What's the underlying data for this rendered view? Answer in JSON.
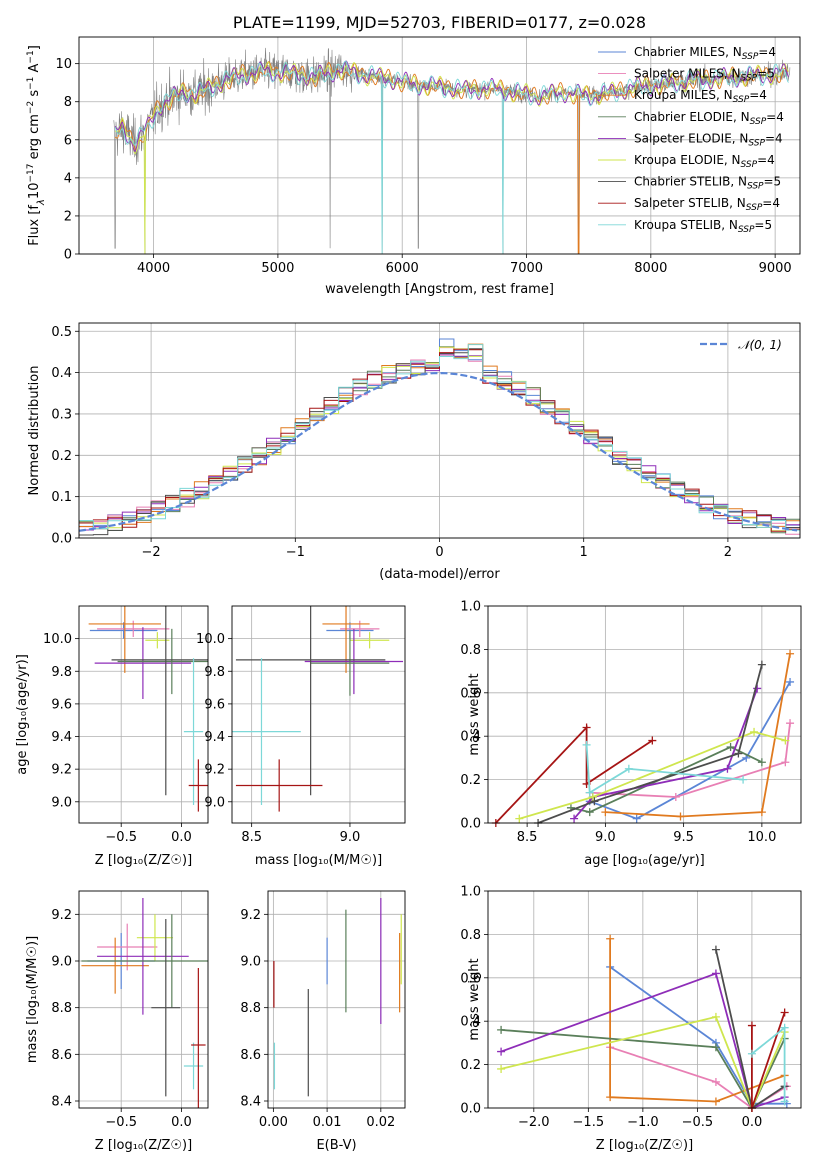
{
  "colors": {
    "chabrier_miles": "#5b86d6",
    "salpeter_miles": "#e87fb4",
    "kroupa_miles": "#e07a1f",
    "chabrier_elodie": "#5a7f5a",
    "salpeter_elodie": "#8e2db8",
    "kroupa_elodie": "#cfe64e",
    "chabrier_stelib": "#4d4d4d",
    "salpeter_stelib": "#a61515",
    "kroupa_stelib": "#7dd8d8",
    "data": "#808080",
    "grid": "#b0b0b0"
  },
  "chart_data": [
    {
      "id": "spectrum",
      "type": "line",
      "title": "PLATE=1199, MJD=52703, FIBERID=0177, z=0.028",
      "xlabel": "wavelength [Angstrom, rest frame]",
      "ylabel": "Flux [f",
      "ylabel_parts": [
        "Flux [f",
        "λ",
        "10",
        "−17",
        " erg cm",
        "−2",
        " s",
        "−1",
        " A",
        "−1",
        "]"
      ],
      "xlim": [
        3400,
        9200
      ],
      "ylim": [
        0,
        11.4
      ],
      "xticks": [
        "4000",
        "5000",
        "6000",
        "7000",
        "8000",
        "9000"
      ],
      "xtick_values": [
        4000,
        5000,
        6000,
        7000,
        8000,
        9000
      ],
      "yticks": [
        "0",
        "2",
        "4",
        "6",
        "8",
        "10"
      ],
      "ytick_values": [
        0,
        2,
        4,
        6,
        8,
        10
      ],
      "legend_position": "top-right",
      "legend": [
        {
          "label": "Chabrier MILES, N",
          "sub": "SSP",
          "val": "=4"
        },
        {
          "label": "Salpeter MILES, N",
          "sub": "SSP",
          "val": "=5"
        },
        {
          "label": "Kroupa MILES, N",
          "sub": "SSP",
          "val": "=4"
        },
        {
          "label": "Chabrier ELODIE, N",
          "sub": "SSP",
          "val": "=4"
        },
        {
          "label": "Salpeter ELODIE, N",
          "sub": "SSP",
          "val": "=4"
        },
        {
          "label": "Kroupa ELODIE, N",
          "sub": "SSP",
          "val": "=4"
        },
        {
          "label": "Chabrier STELIB, N",
          "sub": "SSP",
          "val": "=5"
        },
        {
          "label": "Salpeter STELIB, N",
          "sub": "SSP",
          "val": "=4"
        },
        {
          "label": "Kroupa STELIB, N",
          "sub": "SSP",
          "val": "=5"
        }
      ],
      "continuum": {
        "x": [
          3680,
          3750,
          3850,
          3950,
          4050,
          4150,
          4250,
          4350,
          4500,
          4700,
          4900,
          5100,
          5300,
          5500,
          5700,
          5900,
          6100,
          6300,
          6500,
          6700,
          6900,
          7100,
          7300,
          7500,
          7700,
          7900,
          8100,
          8300,
          8500,
          8700,
          8900,
          9100
        ],
        "y": [
          6.2,
          6.6,
          5.8,
          6.6,
          7.8,
          8.2,
          8.5,
          8.4,
          8.9,
          9.4,
          9.6,
          9.5,
          9.3,
          9.7,
          9.4,
          9.2,
          8.9,
          8.8,
          8.6,
          8.7,
          8.5,
          8.3,
          8.5,
          8.3,
          8.5,
          8.8,
          8.9,
          9.1,
          9.2,
          9.3,
          9.4,
          9.5
        ]
      },
      "dips": [
        {
          "x": 3690,
          "y": 0.3
        },
        {
          "x": 3930,
          "y": 0.0
        },
        {
          "x": 5420,
          "y": 0.3
        },
        {
          "x": 5840,
          "y": 0.0
        },
        {
          "x": 6130,
          "y": 0.3
        },
        {
          "x": 6810,
          "y": 0.0
        },
        {
          "x": 7420,
          "y": 0.0
        }
      ]
    },
    {
      "id": "residuals",
      "type": "area",
      "xlabel": "(data-model)/error",
      "ylabel": "Normed distribution",
      "xlim": [
        -2.5,
        2.5
      ],
      "ylim": [
        0,
        0.52
      ],
      "xticks": [
        "−2",
        "−1",
        "0",
        "1",
        "2"
      ],
      "xtick_values": [
        -2,
        -1,
        0,
        1,
        2
      ],
      "yticks": [
        "0.0",
        "0.1",
        "0.2",
        "0.3",
        "0.4",
        "0.5"
      ],
      "ytick_values": [
        0,
        0.1,
        0.2,
        0.3,
        0.4,
        0.5
      ],
      "legend_position": "top-right",
      "gaussian_label": "𝒩(0, 1)",
      "bin_width": 0.1
    },
    {
      "id": "age_vs_Z",
      "type": "scatter",
      "xlabel": "Z [log",
      "xlabel_tex": "Z [log₁₀(Z/Z☉)]",
      "ylabel_tex": "age  [log₁₀(age/yr)]",
      "xlim": [
        -0.85,
        0.22
      ],
      "ylim": [
        8.87,
        10.2
      ],
      "xticks": [
        "−0.5",
        "0.0"
      ],
      "xtick_values": [
        -0.5,
        0.0
      ],
      "yticks": [
        "9.0",
        "9.2",
        "9.4",
        "9.6",
        "9.8",
        "10.0"
      ],
      "ytick_values": [
        9.0,
        9.2,
        9.4,
        9.6,
        9.8,
        10.0
      ],
      "points": [
        {
          "model": "chabrier_miles",
          "x": -0.48,
          "xerr": 0.28,
          "y": 10.05,
          "yerr": 0.05
        },
        {
          "model": "salpeter_miles",
          "x": -0.4,
          "xerr": 0.3,
          "y": 10.06,
          "yerr": 0.05
        },
        {
          "model": "kroupa_miles",
          "x": -0.47,
          "xerr": 0.3,
          "y": 10.09,
          "yerr": 0.3
        },
        {
          "model": "kroupa_elodie",
          "x": -0.2,
          "xerr": 0.1,
          "y": 9.99,
          "yerr": 0.05
        },
        {
          "model": "salpeter_elodie",
          "x": -0.32,
          "xerr": 0.4,
          "y": 9.85,
          "yerr": 0.22
        },
        {
          "model": "chabrier_elodie",
          "x": -0.08,
          "xerr": 0.45,
          "y": 9.86,
          "yerr": 0.2
        },
        {
          "model": "chabrier_stelib",
          "x": -0.13,
          "xerr": 0.45,
          "y": 9.87,
          "yerr": 0.83
        },
        {
          "model": "kroupa_stelib",
          "x": 0.1,
          "xerr": 0.08,
          "y": 9.43,
          "yerr": 0.45
        },
        {
          "model": "salpeter_stelib",
          "x": 0.14,
          "xerr": 0.08,
          "y": 9.1,
          "yerr": 0.16
        }
      ]
    },
    {
      "id": "age_vs_mass",
      "type": "scatter",
      "xlabel_tex": "mass [log₁₀(M/M☉)]",
      "xlim": [
        8.4,
        9.28
      ],
      "ylim": [
        8.87,
        10.2
      ],
      "xticks": [
        "8.5",
        "9.0"
      ],
      "xtick_values": [
        8.5,
        9.0
      ],
      "yticks": [
        "9.0",
        "9.2",
        "9.4",
        "9.6",
        "9.8",
        "10.0"
      ],
      "ytick_values": [
        9.0,
        9.2,
        9.4,
        9.6,
        9.8,
        10.0
      ],
      "points": [
        {
          "model": "chabrier_miles",
          "x": 9.0,
          "xerr": 0.12,
          "y": 10.05,
          "yerr": 0.05
        },
        {
          "model": "salpeter_miles",
          "x": 9.05,
          "xerr": 0.1,
          "y": 10.06,
          "yerr": 0.05
        },
        {
          "model": "kroupa_miles",
          "x": 8.98,
          "xerr": 0.12,
          "y": 10.09,
          "yerr": 0.3
        },
        {
          "model": "kroupa_elodie",
          "x": 9.1,
          "xerr": 0.1,
          "y": 9.99,
          "yerr": 0.05
        },
        {
          "model": "salpeter_elodie",
          "x": 9.02,
          "xerr": 0.25,
          "y": 9.86,
          "yerr": 0.2
        },
        {
          "model": "chabrier_elodie",
          "x": 9.0,
          "xerr": 0.2,
          "y": 9.85,
          "yerr": 0.2
        },
        {
          "model": "chabrier_stelib",
          "x": 8.8,
          "xerr": 0.38,
          "y": 9.87,
          "yerr": 0.83
        },
        {
          "model": "kroupa_stelib",
          "x": 8.55,
          "xerr": 0.2,
          "y": 9.43,
          "yerr": 0.45
        },
        {
          "model": "salpeter_stelib",
          "x": 8.64,
          "xerr": 0.22,
          "y": 9.1,
          "yerr": 0.16
        }
      ]
    },
    {
      "id": "weight_vs_age",
      "type": "line",
      "xlabel_tex": "age  [log₁₀(age/yr)]",
      "ylabel": "mass weight",
      "xlim": [
        8.25,
        10.25
      ],
      "ylim": [
        0,
        1
      ],
      "xticks": [
        "8.5",
        "9.0",
        "9.5",
        "10.0"
      ],
      "xtick_values": [
        8.5,
        9.0,
        9.5,
        10.0
      ],
      "yticks": [
        "0.0",
        "0.2",
        "0.4",
        "0.6",
        "0.8",
        "1.0"
      ],
      "ytick_values": [
        0,
        0.2,
        0.4,
        0.6,
        0.8,
        1.0
      ],
      "series": [
        {
          "model": "chabrier_miles",
          "x": [
            8.9,
            9.2,
            9.9,
            10.18
          ],
          "y": [
            0.1,
            0.02,
            0.3,
            0.65
          ]
        },
        {
          "model": "salpeter_miles",
          "x": [
            8.9,
            9.45,
            10.15,
            10.18
          ],
          "y": [
            0.14,
            0.12,
            0.28,
            0.46
          ]
        },
        {
          "model": "kroupa_miles",
          "x": [
            9.0,
            9.48,
            10.0,
            10.18
          ],
          "y": [
            0.05,
            0.03,
            0.05,
            0.78
          ]
        },
        {
          "model": "chabrier_elodie",
          "x": [
            8.78,
            8.9,
            9.8,
            10.0
          ],
          "y": [
            0.07,
            0.05,
            0.35,
            0.28
          ]
        },
        {
          "model": "salpeter_elodie",
          "x": [
            8.8,
            8.92,
            9.78,
            9.97
          ],
          "y": [
            0.02,
            0.12,
            0.25,
            0.62
          ]
        },
        {
          "model": "kroupa_elodie",
          "x": [
            8.45,
            8.92,
            9.95,
            10.15
          ],
          "y": [
            0.02,
            0.12,
            0.42,
            0.38
          ]
        },
        {
          "model": "chabrier_stelib",
          "x": [
            8.57,
            8.93,
            9.85,
            10.0
          ],
          "y": [
            0.0,
            0.1,
            0.32,
            0.73
          ]
        },
        {
          "model": "salpeter_stelib",
          "x": [
            8.3,
            8.88,
            8.88,
            9.3
          ],
          "y": [
            0.0,
            0.44,
            0.18,
            0.38
          ]
        },
        {
          "model": "kroupa_stelib",
          "x": [
            8.88,
            8.9,
            9.15,
            9.88
          ],
          "y": [
            0.36,
            0.14,
            0.25,
            0.2
          ]
        }
      ]
    },
    {
      "id": "mass_vs_Z",
      "type": "scatter",
      "xlabel_tex": "Z [log₁₀(Z/Z☉)]",
      "ylabel_tex": "mass [log₁₀(M/M☉)]",
      "xlim": [
        -0.85,
        0.22
      ],
      "ylim": [
        8.37,
        9.3
      ],
      "xticks": [
        "−0.5",
        "0.0"
      ],
      "xtick_values": [
        -0.5,
        0.0
      ],
      "yticks": [
        "8.4",
        "8.6",
        "8.8",
        "9.0",
        "9.2"
      ],
      "ytick_values": [
        8.4,
        8.6,
        8.8,
        9.0,
        9.2
      ],
      "points": [
        {
          "model": "chabrier_miles",
          "x": -0.5,
          "xerr": 0.28,
          "y": 9.0,
          "yerr": 0.12
        },
        {
          "model": "salpeter_miles",
          "x": -0.45,
          "xerr": 0.25,
          "y": 9.06,
          "yerr": 0.1
        },
        {
          "model": "kroupa_miles",
          "x": -0.55,
          "xerr": 0.28,
          "y": 8.98,
          "yerr": 0.12
        },
        {
          "model": "kroupa_elodie",
          "x": -0.22,
          "xerr": 0.15,
          "y": 9.1,
          "yerr": 0.1
        },
        {
          "model": "salpeter_elodie",
          "x": -0.32,
          "xerr": 0.38,
          "y": 9.02,
          "yerr": 0.25
        },
        {
          "model": "chabrier_elodie",
          "x": -0.08,
          "xerr": 0.75,
          "y": 9.0,
          "yerr": 0.2
        },
        {
          "model": "chabrier_stelib",
          "x": -0.13,
          "xerr": 0.12,
          "y": 8.8,
          "yerr": 0.38
        },
        {
          "model": "kroupa_stelib",
          "x": 0.1,
          "xerr": 0.08,
          "y": 8.55,
          "yerr": 0.1
        },
        {
          "model": "salpeter_stelib",
          "x": 0.14,
          "xerr": 0.06,
          "y": 8.64,
          "yerr": 0.33
        }
      ]
    },
    {
      "id": "mass_vs_ebv",
      "type": "scatter",
      "xlabel": "E(B-V)",
      "xlim": [
        -0.001,
        0.0245
      ],
      "ylim": [
        8.37,
        9.3
      ],
      "xticks": [
        "0.00",
        "0.01",
        "0.02"
      ],
      "xtick_values": [
        0.0,
        0.01,
        0.02
      ],
      "yticks": [
        "8.4",
        "8.6",
        "8.8",
        "9.0",
        "9.2"
      ],
      "ytick_values": [
        8.4,
        8.6,
        8.8,
        9.0,
        9.2
      ],
      "points": [
        {
          "model": "salpeter_stelib",
          "x": 0.0001,
          "y": 8.9,
          "yerr": 0.1
        },
        {
          "model": "kroupa_stelib",
          "x": 0.0002,
          "y": 8.55,
          "yerr": 0.1
        },
        {
          "model": "chabrier_stelib",
          "x": 0.0065,
          "y": 8.65,
          "yerr": 0.23
        },
        {
          "model": "chabrier_miles",
          "x": 0.01,
          "y": 9.0,
          "yerr": 0.1
        },
        {
          "model": "chabrier_elodie",
          "x": 0.0135,
          "y": 9.0,
          "yerr": 0.22
        },
        {
          "model": "salpeter_elodie",
          "x": 0.02,
          "y": 9.0,
          "yerr": 0.27
        },
        {
          "model": "kroupa_miles",
          "x": 0.0235,
          "y": 8.95,
          "yerr": 0.17
        },
        {
          "model": "kroupa_elodie",
          "x": 0.0238,
          "y": 9.05,
          "yerr": 0.15
        }
      ]
    },
    {
      "id": "weight_vs_Z",
      "type": "line",
      "xlabel_tex": "Z [log₁₀(Z/Z☉)]",
      "ylabel": "mass weight",
      "xlim": [
        -2.42,
        0.45
      ],
      "ylim": [
        0,
        1
      ],
      "xticks": [
        "−2.0",
        "−1.5",
        "−1.0",
        "−0.5",
        "0.0"
      ],
      "xtick_values": [
        -2.0,
        -1.5,
        -1.0,
        -0.5,
        0.0
      ],
      "yticks": [
        "0.0",
        "0.2",
        "0.4",
        "0.6",
        "0.8",
        "1.0"
      ],
      "ytick_values": [
        0,
        0.2,
        0.4,
        0.6,
        0.8,
        1.0
      ],
      "series": [
        {
          "model": "chabrier_miles",
          "x": [
            -1.3,
            -0.33,
            0.0,
            0.32
          ],
          "y": [
            0.65,
            0.3,
            0.02,
            0.02
          ]
        },
        {
          "model": "salpeter_miles",
          "x": [
            -1.3,
            -0.33,
            0.0,
            0.32
          ],
          "y": [
            0.28,
            0.12,
            0.0,
            0.1
          ]
        },
        {
          "model": "kroupa_miles",
          "x": [
            -1.3,
            -1.3,
            -0.33,
            0.3
          ],
          "y": [
            0.78,
            0.05,
            0.03,
            0.15
          ]
        },
        {
          "model": "chabrier_elodie",
          "x": [
            -2.3,
            -0.33,
            0.0,
            0.3
          ],
          "y": [
            0.36,
            0.28,
            0.0,
            0.32
          ]
        },
        {
          "model": "salpeter_elodie",
          "x": [
            -2.3,
            -0.33,
            0.0,
            0.3
          ],
          "y": [
            0.26,
            0.62,
            0.0,
            0.05
          ]
        },
        {
          "model": "kroupa_elodie",
          "x": [
            -2.3,
            -0.33,
            0.0,
            0.3
          ],
          "y": [
            0.18,
            0.42,
            0.0,
            0.35
          ]
        },
        {
          "model": "chabrier_stelib",
          "x": [
            -0.33,
            0.0,
            0.3
          ],
          "y": [
            0.73,
            0.0,
            0.1
          ]
        },
        {
          "model": "salpeter_stelib",
          "x": [
            0.0,
            0.0,
            0.3
          ],
          "y": [
            0.38,
            0.0,
            0.44
          ]
        },
        {
          "model": "kroupa_stelib",
          "x": [
            0.0,
            0.3,
            0.3
          ],
          "y": [
            0.25,
            0.37,
            0.03
          ]
        }
      ]
    }
  ]
}
